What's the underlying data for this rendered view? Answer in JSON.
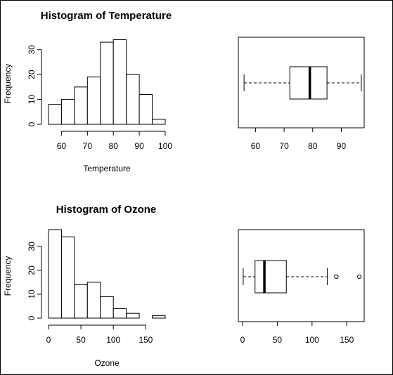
{
  "chart_data": [
    {
      "type": "bar",
      "subtype": "histogram",
      "title": "Histogram of Temperature",
      "xlabel": "Temperature",
      "ylabel": "Frequency",
      "bins": [
        [
          55,
          60
        ],
        [
          60,
          65
        ],
        [
          65,
          70
        ],
        [
          70,
          75
        ],
        [
          75,
          80
        ],
        [
          80,
          85
        ],
        [
          85,
          90
        ],
        [
          90,
          95
        ],
        [
          95,
          100
        ]
      ],
      "values": [
        8,
        10,
        15,
        19,
        33,
        34,
        20,
        12,
        2
      ],
      "xlim": [
        55,
        100
      ],
      "ylim": [
        0,
        35
      ],
      "xticks": [
        60,
        70,
        80,
        90,
        100
      ],
      "xtick_labels": [
        "60",
        "70",
        "80",
        "90",
        "100"
      ],
      "yticks": [
        0,
        10,
        20,
        30
      ],
      "ytick_labels": [
        "0",
        "10",
        "20",
        "30"
      ]
    },
    {
      "type": "box",
      "title": "",
      "orientation": "horizontal",
      "whisker_low": 56,
      "q1": 72,
      "median": 79,
      "q3": 85,
      "whisker_high": 97,
      "outliers": [],
      "xlim": [
        54,
        98
      ],
      "xticks": [
        60,
        70,
        80,
        90
      ],
      "xtick_labels": [
        "60",
        "70",
        "80",
        "90"
      ]
    },
    {
      "type": "bar",
      "subtype": "histogram",
      "title": "Histogram of Ozone",
      "xlabel": "Ozone",
      "ylabel": "Frequency",
      "bins": [
        [
          0,
          20
        ],
        [
          20,
          40
        ],
        [
          40,
          60
        ],
        [
          60,
          80
        ],
        [
          80,
          100
        ],
        [
          100,
          120
        ],
        [
          120,
          140
        ],
        [
          140,
          160
        ],
        [
          160,
          180
        ]
      ],
      "values": [
        37,
        34,
        14,
        15,
        9,
        4,
        2,
        0,
        1
      ],
      "xlim": [
        0,
        180
      ],
      "ylim": [
        0,
        37
      ],
      "xticks": [
        0,
        50,
        100,
        150
      ],
      "xtick_labels": [
        "0",
        "50",
        "100",
        "150"
      ],
      "yticks": [
        0,
        10,
        20,
        30
      ],
      "ytick_labels": [
        "0",
        "10",
        "20",
        "30"
      ]
    },
    {
      "type": "box",
      "title": "",
      "orientation": "horizontal",
      "whisker_low": 1,
      "q1": 18,
      "median": 31.5,
      "q3": 63,
      "whisker_high": 122,
      "outliers": [
        135,
        168
      ],
      "xlim": [
        -6,
        175
      ],
      "xticks": [
        0,
        50,
        100,
        150
      ],
      "xtick_labels": [
        "0",
        "50",
        "100",
        "150"
      ]
    }
  ]
}
